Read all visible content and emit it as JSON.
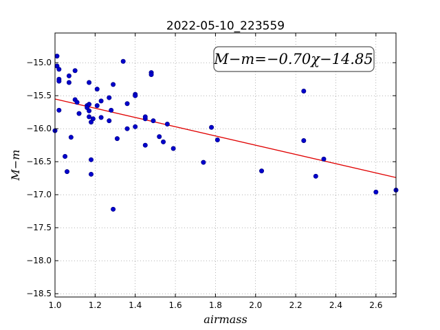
{
  "chart_data": {
    "type": "scatter",
    "title": "2022-05-10_223559",
    "xlabel": "airmass",
    "ylabel": "M−m",
    "xlim": [
      1.0,
      2.7
    ],
    "ylim": [
      -18.55,
      -14.55
    ],
    "x_ticks": [
      1.0,
      1.2,
      1.4,
      1.6,
      1.8,
      2.0,
      2.2,
      2.4,
      2.6
    ],
    "y_ticks": [
      -15.0,
      -15.5,
      -16.0,
      -16.5,
      -17.0,
      -17.5,
      -18.0,
      -18.5
    ],
    "grid": true,
    "annotation": "M−m=−0.70χ−14.85",
    "fit": {
      "slope": -0.7,
      "intercept": -14.85,
      "color": "#e00000"
    },
    "point_color": "#0000cc",
    "points": [
      [
        1.0,
        -16.03
      ],
      [
        1.01,
        -15.05
      ],
      [
        1.01,
        -14.9
      ],
      [
        1.02,
        -15.1
      ],
      [
        1.02,
        -15.25
      ],
      [
        1.02,
        -15.28
      ],
      [
        1.02,
        -15.72
      ],
      [
        1.05,
        -16.42
      ],
      [
        1.06,
        -16.65
      ],
      [
        1.07,
        -15.3
      ],
      [
        1.07,
        -15.2
      ],
      [
        1.08,
        -16.13
      ],
      [
        1.1,
        -15.12
      ],
      [
        1.1,
        -15.56
      ],
      [
        1.11,
        -15.6
      ],
      [
        1.12,
        -15.77
      ],
      [
        1.16,
        -15.65
      ],
      [
        1.16,
        -15.68
      ],
      [
        1.17,
        -15.3
      ],
      [
        1.17,
        -15.63
      ],
      [
        1.17,
        -15.73
      ],
      [
        1.17,
        -15.82
      ],
      [
        1.18,
        -15.9
      ],
      [
        1.18,
        -16.47
      ],
      [
        1.18,
        -16.69
      ],
      [
        1.19,
        -15.85
      ],
      [
        1.21,
        -15.4
      ],
      [
        1.21,
        -15.65
      ],
      [
        1.23,
        -15.58
      ],
      [
        1.23,
        -15.83
      ],
      [
        1.27,
        -15.53
      ],
      [
        1.27,
        -15.88
      ],
      [
        1.28,
        -15.72
      ],
      [
        1.29,
        -15.33
      ],
      [
        1.29,
        -17.22
      ],
      [
        1.31,
        -16.15
      ],
      [
        1.34,
        -14.98
      ],
      [
        1.36,
        -15.62
      ],
      [
        1.36,
        -16.0
      ],
      [
        1.4,
        -15.48
      ],
      [
        1.4,
        -15.5
      ],
      [
        1.4,
        -15.97
      ],
      [
        1.45,
        -15.85
      ],
      [
        1.45,
        -15.82
      ],
      [
        1.45,
        -16.25
      ],
      [
        1.48,
        -15.15
      ],
      [
        1.48,
        -15.18
      ],
      [
        1.49,
        -15.88
      ],
      [
        1.52,
        -16.12
      ],
      [
        1.54,
        -16.2
      ],
      [
        1.56,
        -15.93
      ],
      [
        1.59,
        -16.3
      ],
      [
        1.74,
        -16.51
      ],
      [
        1.78,
        -15.98
      ],
      [
        1.81,
        -16.17
      ],
      [
        2.03,
        -16.64
      ],
      [
        2.24,
        -15.43
      ],
      [
        2.24,
        -16.18
      ],
      [
        2.3,
        -16.72
      ],
      [
        2.34,
        -16.46
      ],
      [
        2.6,
        -16.96
      ],
      [
        2.7,
        -16.93
      ]
    ]
  }
}
